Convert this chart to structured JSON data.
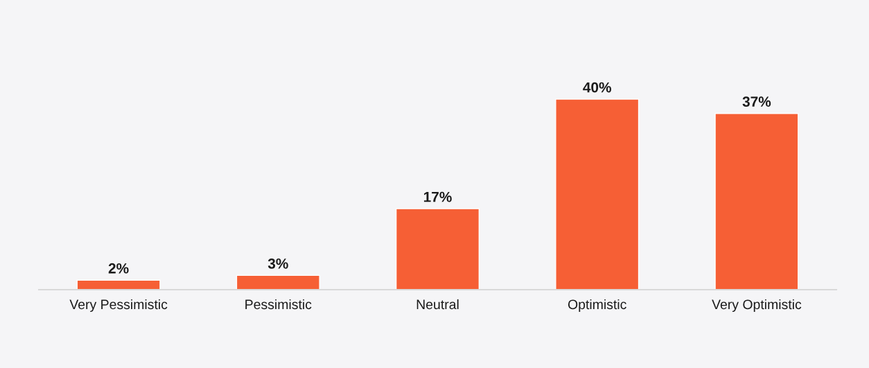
{
  "chart_data": {
    "type": "bar",
    "categories": [
      "Very Pessimistic",
      "Pessimistic",
      "Neutral",
      "Optimistic",
      "Very Optimistic"
    ],
    "values": [
      2,
      3,
      17,
      40,
      37
    ],
    "color": "#f65f35",
    "value_labels": [
      "2%",
      "3%",
      "17%",
      "40%",
      "37%"
    ],
    "tick_labels": "x",
    "grid": false,
    "legend": false
  }
}
